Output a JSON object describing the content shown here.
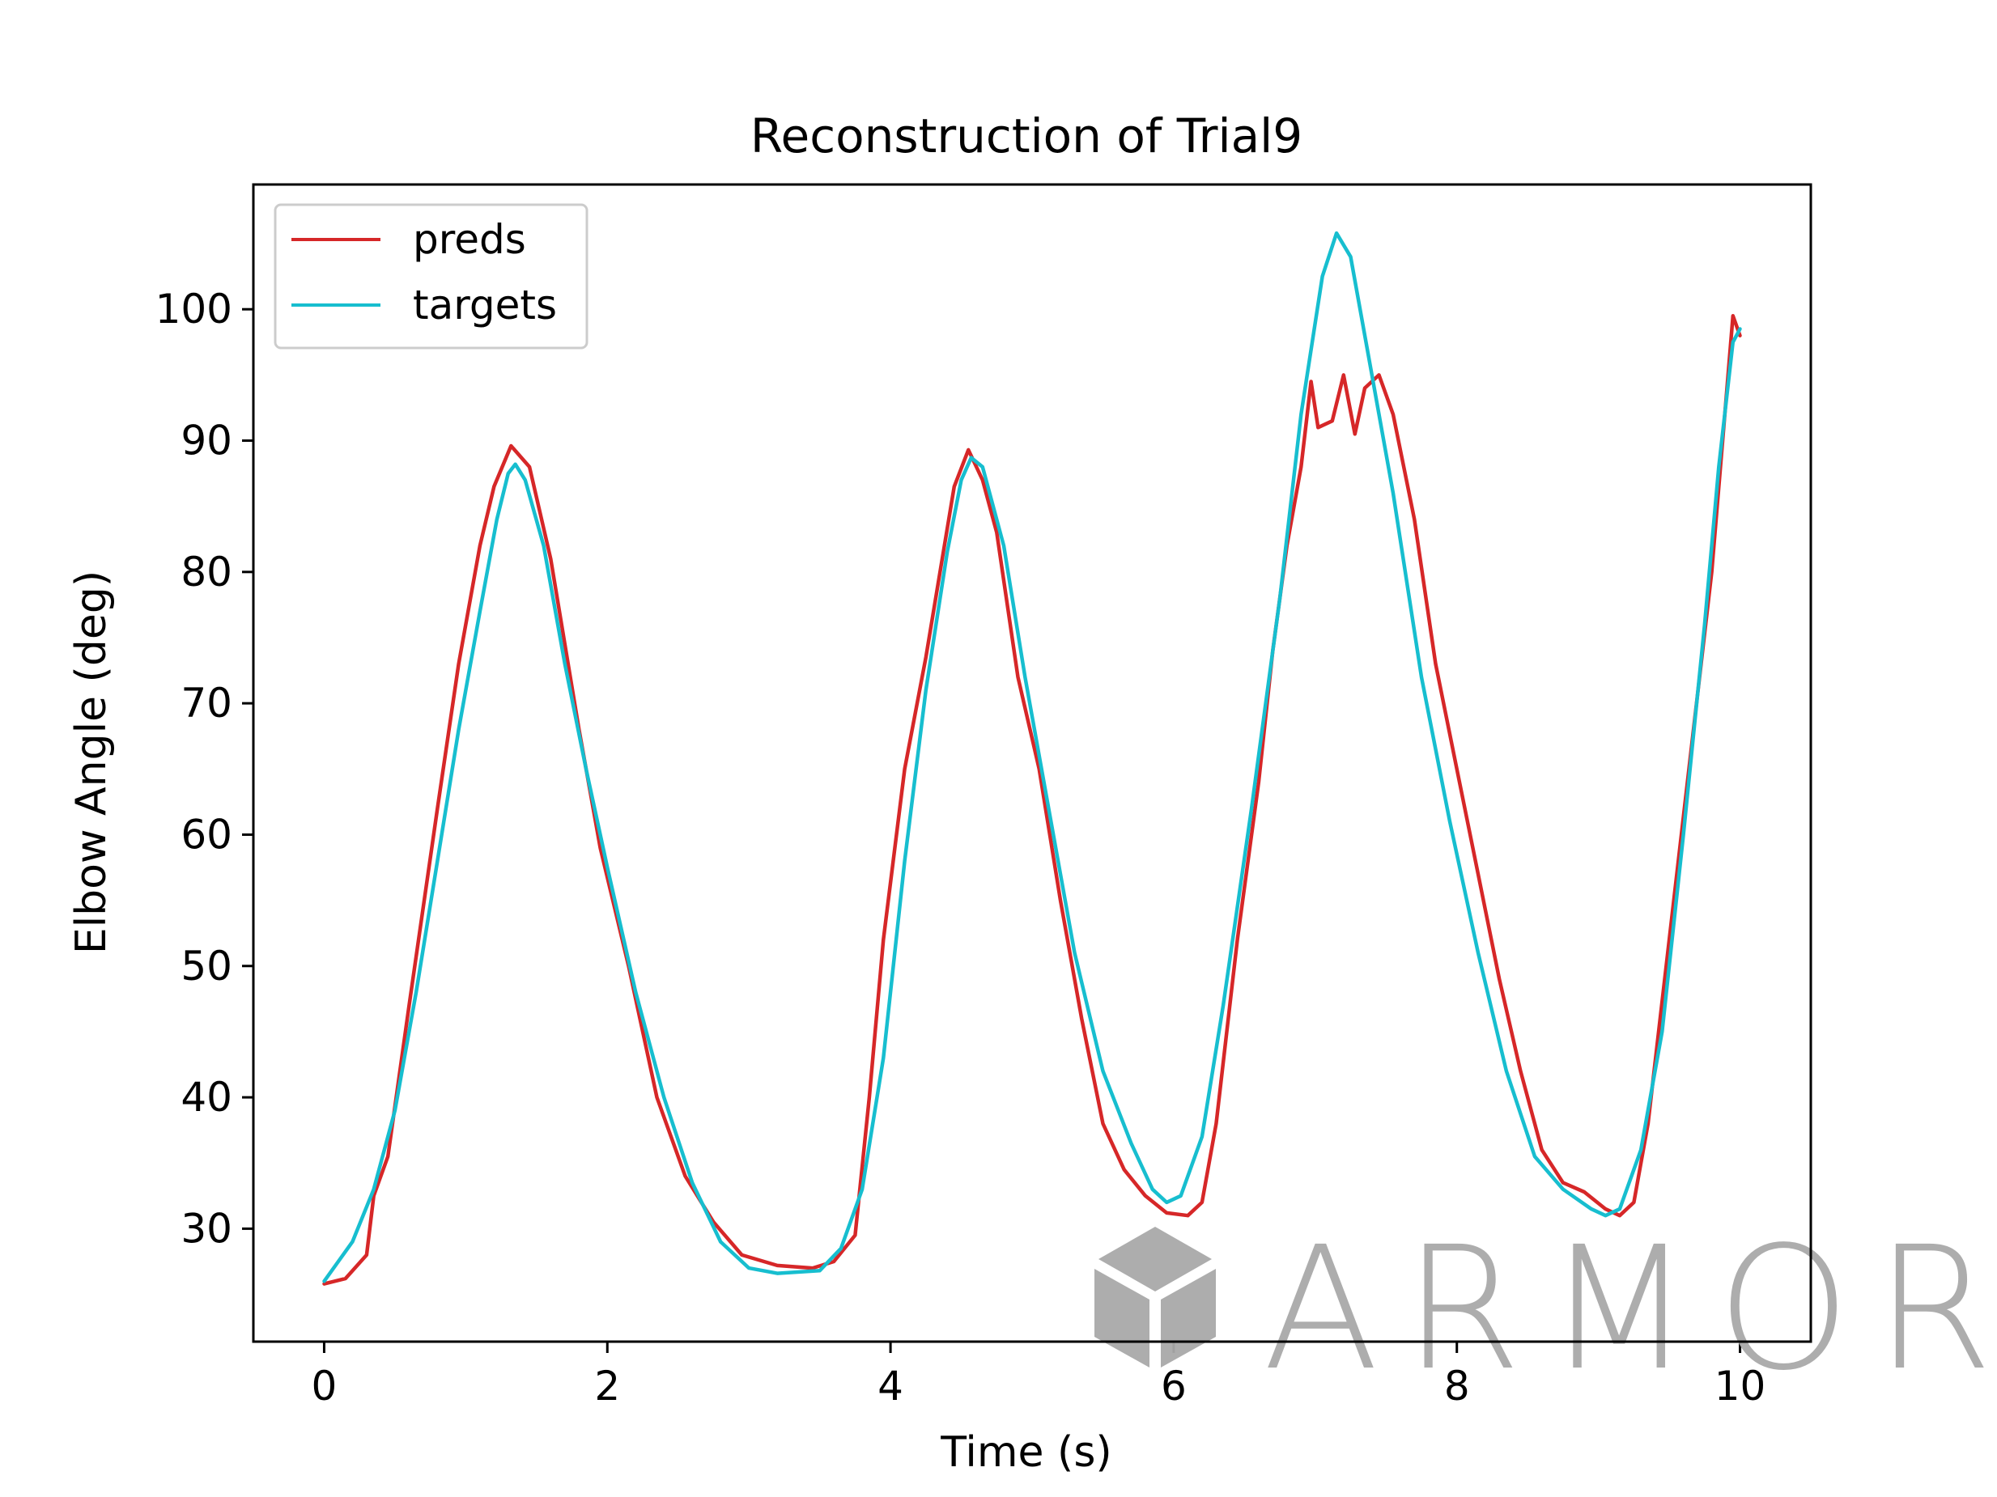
{
  "chart_data": {
    "type": "line",
    "title": "Reconstruction of Trial9",
    "xlabel": "Time (s)",
    "ylabel": "Elbow Angle (deg)",
    "xlim": [
      -0.5,
      10.5
    ],
    "ylim": [
      21.4,
      109.5
    ],
    "xticks": [
      0,
      2,
      4,
      6,
      8,
      10
    ],
    "yticks": [
      30,
      40,
      50,
      60,
      70,
      80,
      90,
      100
    ],
    "grid": false,
    "legend": "upper-left",
    "series": [
      {
        "name": "preds",
        "color": "#d62728",
        "points": [
          [
            0,
            25.8
          ],
          [
            0.15,
            26.2
          ],
          [
            0.3,
            28.0
          ],
          [
            0.35,
            32.5
          ],
          [
            0.45,
            35.5
          ],
          [
            0.6,
            47.0
          ],
          [
            0.8,
            62.0
          ],
          [
            0.95,
            73.0
          ],
          [
            1.1,
            82.0
          ],
          [
            1.2,
            86.5
          ],
          [
            1.32,
            89.6
          ],
          [
            1.45,
            88.0
          ],
          [
            1.6,
            81.0
          ],
          [
            1.8,
            68.0
          ],
          [
            1.95,
            59.0
          ],
          [
            2.15,
            50.0
          ],
          [
            2.35,
            40.0
          ],
          [
            2.55,
            34.0
          ],
          [
            2.75,
            30.5
          ],
          [
            2.95,
            28.0
          ],
          [
            3.2,
            27.2
          ],
          [
            3.45,
            27.0
          ],
          [
            3.6,
            27.5
          ],
          [
            3.75,
            29.5
          ],
          [
            3.85,
            40.0
          ],
          [
            3.95,
            52.0
          ],
          [
            4.1,
            65.0
          ],
          [
            4.25,
            73.5
          ],
          [
            4.35,
            80.0
          ],
          [
            4.45,
            86.5
          ],
          [
            4.55,
            89.3
          ],
          [
            4.65,
            87.0
          ],
          [
            4.75,
            83.0
          ],
          [
            4.9,
            72.0
          ],
          [
            5.05,
            65.0
          ],
          [
            5.2,
            55.0
          ],
          [
            5.35,
            46.0
          ],
          [
            5.5,
            38.0
          ],
          [
            5.65,
            34.5
          ],
          [
            5.8,
            32.5
          ],
          [
            5.95,
            31.2
          ],
          [
            6.1,
            31.0
          ],
          [
            6.2,
            32.0
          ],
          [
            6.3,
            38.0
          ],
          [
            6.45,
            52.0
          ],
          [
            6.6,
            64.0
          ],
          [
            6.7,
            74.0
          ],
          [
            6.8,
            82.0
          ],
          [
            6.9,
            88.0
          ],
          [
            6.97,
            94.5
          ],
          [
            7.02,
            91.0
          ],
          [
            7.12,
            91.5
          ],
          [
            7.2,
            95.0
          ],
          [
            7.28,
            90.5
          ],
          [
            7.35,
            94.0
          ],
          [
            7.45,
            95.0
          ],
          [
            7.55,
            92.0
          ],
          [
            7.7,
            84.0
          ],
          [
            7.85,
            73.0
          ],
          [
            8.0,
            65.0
          ],
          [
            8.15,
            57.0
          ],
          [
            8.3,
            49.0
          ],
          [
            8.45,
            42.0
          ],
          [
            8.6,
            36.0
          ],
          [
            8.75,
            33.5
          ],
          [
            8.9,
            32.8
          ],
          [
            9.05,
            31.5
          ],
          [
            9.15,
            31.0
          ],
          [
            9.25,
            32.0
          ],
          [
            9.35,
            38.0
          ],
          [
            9.5,
            52.0
          ],
          [
            9.65,
            66.0
          ],
          [
            9.8,
            80.0
          ],
          [
            9.9,
            93.0
          ],
          [
            9.95,
            99.5
          ],
          [
            10.0,
            98.0
          ]
        ]
      },
      {
        "name": "targets",
        "color": "#17becf",
        "points": [
          [
            0,
            26.0
          ],
          [
            0.1,
            27.5
          ],
          [
            0.2,
            29.0
          ],
          [
            0.35,
            33.0
          ],
          [
            0.5,
            39.0
          ],
          [
            0.65,
            48.0
          ],
          [
            0.8,
            58.0
          ],
          [
            0.95,
            68.0
          ],
          [
            1.1,
            77.0
          ],
          [
            1.22,
            84.0
          ],
          [
            1.3,
            87.5
          ],
          [
            1.35,
            88.2
          ],
          [
            1.42,
            87.0
          ],
          [
            1.55,
            82.0
          ],
          [
            1.7,
            73.0
          ],
          [
            1.85,
            65.0
          ],
          [
            2.0,
            57.5
          ],
          [
            2.2,
            48.0
          ],
          [
            2.4,
            40.0
          ],
          [
            2.6,
            33.5
          ],
          [
            2.8,
            29.0
          ],
          [
            3.0,
            27.0
          ],
          [
            3.2,
            26.6
          ],
          [
            3.5,
            26.8
          ],
          [
            3.65,
            28.5
          ],
          [
            3.8,
            33.0
          ],
          [
            3.95,
            43.0
          ],
          [
            4.1,
            58.0
          ],
          [
            4.25,
            71.0
          ],
          [
            4.4,
            81.5
          ],
          [
            4.5,
            87.0
          ],
          [
            4.57,
            88.7
          ],
          [
            4.65,
            88.0
          ],
          [
            4.8,
            82.0
          ],
          [
            4.95,
            72.0
          ],
          [
            5.1,
            63.0
          ],
          [
            5.3,
            51.0
          ],
          [
            5.5,
            42.0
          ],
          [
            5.7,
            36.5
          ],
          [
            5.85,
            33.0
          ],
          [
            5.95,
            32.0
          ],
          [
            6.05,
            32.5
          ],
          [
            6.2,
            37.0
          ],
          [
            6.35,
            47.0
          ],
          [
            6.55,
            62.0
          ],
          [
            6.75,
            78.0
          ],
          [
            6.9,
            92.0
          ],
          [
            7.05,
            102.5
          ],
          [
            7.15,
            105.8
          ],
          [
            7.25,
            104.0
          ],
          [
            7.4,
            95.0
          ],
          [
            7.55,
            86.0
          ],
          [
            7.75,
            72.0
          ],
          [
            7.95,
            61.0
          ],
          [
            8.15,
            51.0
          ],
          [
            8.35,
            42.0
          ],
          [
            8.55,
            35.5
          ],
          [
            8.75,
            33.0
          ],
          [
            8.95,
            31.5
          ],
          [
            9.05,
            31.0
          ],
          [
            9.15,
            31.5
          ],
          [
            9.3,
            36.0
          ],
          [
            9.45,
            45.0
          ],
          [
            9.6,
            60.0
          ],
          [
            9.75,
            76.0
          ],
          [
            9.85,
            88.0
          ],
          [
            9.95,
            97.5
          ],
          [
            10.0,
            98.5
          ]
        ]
      }
    ]
  },
  "watermark": {
    "text": "ARMOR",
    "color": "#a9a9a9",
    "icon": "cube-logo-icon"
  }
}
